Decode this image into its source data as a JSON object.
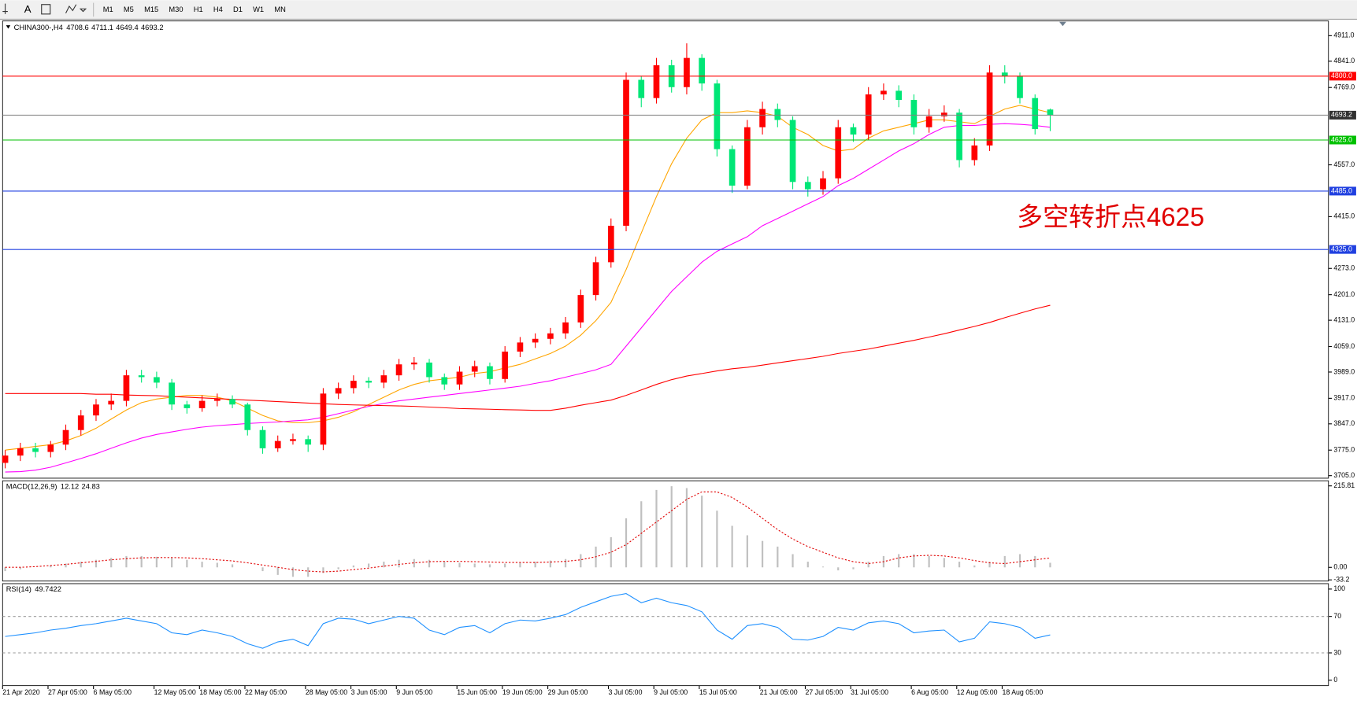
{
  "toolbar": {
    "timeframes": [
      "M1",
      "M5",
      "M15",
      "M30",
      "H1",
      "H4",
      "D1",
      "W1",
      "MN"
    ]
  },
  "chart_data": [
    {
      "type": "candlestick",
      "symbol": "CHINA300-,H4",
      "annotation": "多空转折点4625",
      "up_color": "#ff0000",
      "down_color": "#00e676",
      "categories": [
        "21 Apr 2020",
        null,
        null,
        "27 Apr 05:00",
        null,
        null,
        "6 May 05:00",
        null,
        null,
        null,
        "12 May 05:00",
        null,
        null,
        "18 May 05:00",
        null,
        null,
        "22 May 05:00",
        null,
        null,
        null,
        "28 May 05:00",
        null,
        null,
        "3 Jun 05:00",
        null,
        null,
        "9 Jun 05:00",
        null,
        null,
        null,
        "15 Jun 05:00",
        null,
        null,
        "19 Jun 05:00",
        null,
        null,
        "29 Jun 05:00",
        null,
        null,
        null,
        "3 Jul 05:00",
        null,
        null,
        "9 Jul 05:00",
        null,
        null,
        "15 Jul 05:00",
        null,
        null,
        null,
        "21 Jul 05:00",
        null,
        null,
        "27 Jul 05:00",
        null,
        null,
        "31 Jul 05:00",
        null,
        null,
        null,
        "6 Aug 05:00",
        null,
        null,
        "12 Aug 05:00",
        null,
        null,
        "18 Aug 05:00",
        null,
        null,
        null
      ],
      "open": [
        3740,
        3760,
        3780,
        3770,
        3790,
        3830,
        3870,
        3900,
        3910,
        3980,
        3975,
        3960,
        3900,
        3890,
        3910,
        3915,
        3900,
        3830,
        3780,
        3800,
        3805,
        3790,
        3930,
        3945,
        3965,
        3960,
        3980,
        4010,
        4015,
        3975,
        3955,
        3990,
        4005,
        3970,
        4045,
        4070,
        4080,
        4095,
        4125,
        4200,
        4290,
        4390,
        4790,
        4740,
        4830,
        4770,
        4850,
        4780,
        4600,
        4500,
        4660,
        4710,
        4680,
        4510,
        4490,
        4520,
        4660,
        4640,
        4750,
        4760,
        4735,
        4660,
        4690,
        4700,
        4570,
        4610,
        4810,
        4800,
        4740,
        4708.6
      ],
      "high": [
        3775,
        3795,
        3795,
        3800,
        3845,
        3885,
        3915,
        3930,
        3995,
        3995,
        3990,
        3970,
        3910,
        3925,
        3930,
        3925,
        3905,
        3840,
        3815,
        3820,
        3815,
        3945,
        3960,
        3980,
        3975,
        3995,
        4025,
        4030,
        4025,
        3985,
        4005,
        4020,
        4015,
        4060,
        4085,
        4095,
        4110,
        4140,
        4215,
        4305,
        4410,
        4810,
        4800,
        4850,
        4845,
        4890,
        4860,
        4790,
        4610,
        4680,
        4730,
        4725,
        4690,
        4525,
        4540,
        4680,
        4670,
        4770,
        4780,
        4775,
        4750,
        4710,
        4720,
        4710,
        4630,
        4830,
        4830,
        4810,
        4750,
        4711.1
      ],
      "low": [
        3725,
        3745,
        3755,
        3755,
        3775,
        3815,
        3855,
        3885,
        3895,
        3960,
        3945,
        3885,
        3875,
        3880,
        3895,
        3890,
        3815,
        3765,
        3770,
        3790,
        3770,
        3775,
        3915,
        3930,
        3945,
        3945,
        3965,
        3995,
        3960,
        3940,
        3940,
        3975,
        3955,
        3960,
        4030,
        4055,
        4065,
        4080,
        4110,
        4185,
        4275,
        4375,
        4715,
        4725,
        4755,
        4750,
        4760,
        4580,
        4480,
        4490,
        4640,
        4660,
        4490,
        4470,
        4475,
        4505,
        4620,
        4625,
        4735,
        4715,
        4640,
        4645,
        4675,
        4550,
        4555,
        4595,
        4780,
        4725,
        4640,
        4649.4
      ],
      "close": [
        3760,
        3780,
        3770,
        3790,
        3830,
        3870,
        3900,
        3910,
        3980,
        3975,
        3960,
        3900,
        3890,
        3910,
        3915,
        3900,
        3830,
        3780,
        3800,
        3805,
        3790,
        3930,
        3945,
        3965,
        3960,
        3980,
        4010,
        4015,
        3975,
        3955,
        3990,
        4005,
        3970,
        4045,
        4070,
        4080,
        4095,
        4125,
        4200,
        4290,
        4390,
        4790,
        4740,
        4830,
        4770,
        4850,
        4780,
        4600,
        4500,
        4660,
        4710,
        4680,
        4510,
        4490,
        4520,
        4660,
        4640,
        4750,
        4760,
        4735,
        4660,
        4690,
        4700,
        4570,
        4610,
        4810,
        4800,
        4740,
        4655,
        4693.2
      ],
      "series": [
        {
          "color": "#ffa500",
          "values": [
            3775,
            3780,
            3785,
            3790,
            3800,
            3815,
            3835,
            3860,
            3885,
            3905,
            3915,
            3920,
            3925,
            3925,
            3920,
            3910,
            3890,
            3870,
            3855,
            3850,
            3850,
            3855,
            3865,
            3880,
            3900,
            3920,
            3940,
            3955,
            3965,
            3970,
            3975,
            3985,
            3990,
            4000,
            4010,
            4025,
            4040,
            4060,
            4090,
            4130,
            4180,
            4270,
            4370,
            4470,
            4560,
            4630,
            4680,
            4700,
            4700,
            4705,
            4700,
            4690,
            4660,
            4640,
            4610,
            4595,
            4600,
            4630,
            4650,
            4660,
            4670,
            4680,
            4680,
            4675,
            4670,
            4690,
            4710,
            4720,
            4710,
            4700
          ]
        },
        {
          "color": "#ff00ff",
          "values": [
            3715,
            3716,
            3720,
            3728,
            3740,
            3752,
            3765,
            3780,
            3795,
            3808,
            3818,
            3825,
            3832,
            3838,
            3842,
            3845,
            3848,
            3850,
            3852,
            3855,
            3858,
            3865,
            3875,
            3885,
            3895,
            3903,
            3910,
            3915,
            3920,
            3925,
            3930,
            3935,
            3940,
            3945,
            3950,
            3958,
            3965,
            3975,
            3985,
            3995,
            4010,
            4060,
            4110,
            4160,
            4210,
            4250,
            4290,
            4320,
            4340,
            4360,
            4390,
            4410,
            4430,
            4450,
            4470,
            4500,
            4520,
            4545,
            4570,
            4595,
            4615,
            4640,
            4660,
            4665,
            4665,
            4668,
            4670,
            4668,
            4665,
            4660
          ]
        },
        {
          "color": "#ff0000",
          "values": [
            3930,
            3930,
            3930,
            3930,
            3930,
            3930,
            3928,
            3928,
            3926,
            3925,
            3924,
            3922,
            3920,
            3918,
            3916,
            3914,
            3912,
            3910,
            3908,
            3906,
            3904,
            3902,
            3900,
            3899,
            3898,
            3897,
            3896,
            3895,
            3893,
            3891,
            3889,
            3888,
            3887,
            3886,
            3885,
            3884,
            3884,
            3890,
            3898,
            3905,
            3912,
            3925,
            3940,
            3955,
            3968,
            3978,
            3985,
            3992,
            3998,
            4002,
            4008,
            4014,
            4020,
            4026,
            4032,
            4040,
            4046,
            4052,
            4060,
            4068,
            4076,
            4085,
            4094,
            4104,
            4114,
            4125,
            4138,
            4150,
            4162,
            4172
          ]
        }
      ],
      "levels": [
        {
          "value": 4800,
          "label": "4800.0",
          "color": "#ff0000"
        },
        {
          "value": 4693.2,
          "label": "4693.2",
          "color": "#808080"
        },
        {
          "value": 4625,
          "label": "4625.0",
          "color": "#00c000"
        },
        {
          "value": 4485,
          "label": "4485.0",
          "color": "#2040e0"
        },
        {
          "value": 4325,
          "label": "4325.0",
          "color": "#2040e0"
        }
      ],
      "ylim": [
        3698,
        4949
      ],
      "yticks": [
        {
          "value": 4911,
          "label": "4911.0"
        },
        {
          "value": 4841,
          "label": "4841.0"
        },
        {
          "value": 4769,
          "label": "4769.0"
        },
        {
          "value": 4557,
          "label": "4557.0"
        },
        {
          "value": 4415,
          "label": "4415.0"
        },
        {
          "value": 4273,
          "label": "4273.0"
        },
        {
          "value": 4201,
          "label": "4201.0"
        },
        {
          "value": 4131,
          "label": "4131.0"
        },
        {
          "value": 4059,
          "label": "4059.0"
        },
        {
          "value": 3989,
          "label": "3989.0"
        },
        {
          "value": 3917,
          "label": "3917.0"
        },
        {
          "value": 3847,
          "label": "3847.0"
        },
        {
          "value": 3775,
          "label": "3775.0"
        },
        {
          "value": 3705,
          "label": "3705.0"
        }
      ]
    },
    {
      "type": "macd",
      "title": "MACD(12,26,9)",
      "histogram": {
        "color": "#c0c0c0",
        "values": [
          -10,
          -5,
          0,
          5,
          10,
          15,
          20,
          25,
          30,
          30,
          28,
          25,
          20,
          15,
          12,
          8,
          0,
          -10,
          -20,
          -25,
          -25,
          -15,
          -5,
          5,
          10,
          15,
          20,
          22,
          20,
          15,
          12,
          10,
          8,
          10,
          12,
          15,
          18,
          22,
          35,
          55,
          80,
          130,
          175,
          205,
          215,
          210,
          190,
          150,
          110,
          85,
          70,
          55,
          35,
          15,
          2,
          -8,
          -5,
          15,
          30,
          35,
          35,
          30,
          25,
          15,
          5,
          15,
          30,
          35,
          30,
          12.12
        ]
      },
      "signal": {
        "color": "#e00000",
        "values": [
          0,
          0,
          2,
          5,
          8,
          12,
          16,
          20,
          23,
          25,
          26,
          26,
          25,
          23,
          20,
          17,
          12,
          6,
          0,
          -6,
          -10,
          -12,
          -10,
          -6,
          -2,
          3,
          8,
          12,
          15,
          16,
          16,
          15,
          14,
          13,
          13,
          13,
          14,
          16,
          20,
          28,
          40,
          60,
          90,
          120,
          150,
          180,
          200,
          200,
          185,
          160,
          130,
          100,
          75,
          55,
          40,
          25,
          15,
          10,
          15,
          25,
          30,
          32,
          30,
          25,
          18,
          12,
          10,
          15,
          20,
          24.83
        ]
      },
      "ylim": [
        -34,
        227
      ],
      "yticks": [
        215.81,
        {
          "value": 0,
          "label": "0.00"
        },
        -33.2
      ]
    },
    {
      "type": "line",
      "title": "RSI(14)",
      "series": [
        {
          "color": "#1e90ff",
          "values": [
            48,
            50,
            52,
            55,
            57,
            60,
            62,
            65,
            68,
            65,
            62,
            52,
            50,
            55,
            52,
            48,
            40,
            35,
            42,
            45,
            38,
            62,
            68,
            67,
            62,
            66,
            70,
            68,
            55,
            50,
            58,
            60,
            52,
            62,
            66,
            65,
            68,
            72,
            80,
            86,
            92,
            95,
            85,
            90,
            85,
            82,
            75,
            55,
            45,
            60,
            62,
            58,
            45,
            44,
            48,
            58,
            55,
            63,
            65,
            62,
            52,
            54,
            55,
            42,
            46,
            64,
            62,
            58,
            46,
            49.7422
          ]
        }
      ],
      "levels": [
        70,
        30
      ],
      "ylim": [
        -5,
        105
      ],
      "yticks": [
        100,
        70,
        30,
        0
      ]
    }
  ]
}
